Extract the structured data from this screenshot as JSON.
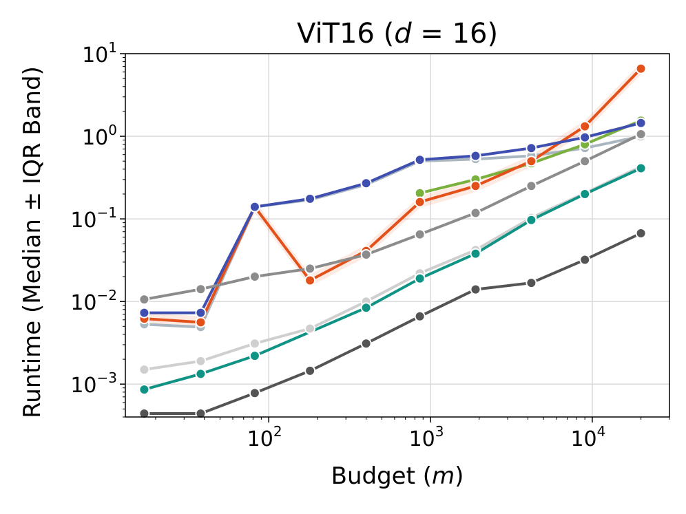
{
  "chart_data": {
    "type": "line",
    "title_plain": "ViT16 (",
    "title_var": "d",
    "title_eq": " = 16)",
    "xlabel_plain": "Budget (",
    "xlabel_var": "m",
    "xlabel_close": ")",
    "ylabel": "Runtime (Median ± IQR Band)",
    "x_scale": "log",
    "y_scale": "log",
    "xlim": [
      13,
      30000
    ],
    "ylim": [
      0.0004,
      10
    ],
    "grid": true,
    "x_ticks": [
      {
        "base": "10",
        "exp": "2",
        "value": 100
      },
      {
        "base": "10",
        "exp": "3",
        "value": 1000
      },
      {
        "base": "10",
        "exp": "4",
        "value": 10000
      }
    ],
    "y_ticks": [
      {
        "base": "10",
        "exp": "−3",
        "value": 0.001
      },
      {
        "base": "10",
        "exp": "−2",
        "value": 0.01
      },
      {
        "base": "10",
        "exp": "−1",
        "value": 0.1
      },
      {
        "base": "10",
        "exp": "0",
        "value": 1
      },
      {
        "base": "10",
        "exp": "1",
        "value": 10
      }
    ],
    "x": [
      17,
      38,
      82,
      180,
      400,
      860,
      1900,
      4200,
      9000,
      20000
    ],
    "series": [
      {
        "color": "#aab7c1",
        "band": false,
        "values": [
          0.0053,
          0.0049,
          0.14,
          0.17,
          0.26,
          0.5,
          0.53,
          0.58,
          0.72,
          1.0
        ]
      },
      {
        "color": "#7ab03e",
        "band": false,
        "values": [
          null,
          null,
          null,
          null,
          null,
          0.205,
          0.3,
          0.47,
          0.8,
          1.55
        ]
      },
      {
        "color": "#e3501a",
        "band": true,
        "values": [
          0.0062,
          0.0056,
          0.14,
          0.018,
          0.041,
          0.16,
          0.25,
          0.5,
          1.32,
          6.6
        ]
      },
      {
        "color": "#3f4fb0",
        "band": false,
        "values": [
          0.0073,
          0.0073,
          0.14,
          0.175,
          0.27,
          0.52,
          0.58,
          0.72,
          0.97,
          1.45
        ]
      },
      {
        "color": "#8c8c8c",
        "band": false,
        "values": [
          0.0106,
          0.0141,
          0.02,
          0.025,
          0.037,
          0.065,
          0.118,
          0.25,
          0.5,
          1.06
        ]
      },
      {
        "color": "#cfcfcf",
        "band": false,
        "values": [
          0.0015,
          0.0019,
          0.0031,
          0.0047,
          0.01,
          0.022,
          0.042,
          0.103,
          0.205,
          0.43
        ]
      },
      {
        "color": "#0e9384",
        "band": false,
        "values": [
          0.00086,
          0.00133,
          0.0022,
          null,
          0.0084,
          0.019,
          0.038,
          0.097,
          0.2,
          0.41
        ]
      },
      {
        "color": "#545454",
        "band": false,
        "values": [
          0.00044,
          0.00044,
          0.00078,
          0.00145,
          0.0031,
          0.0066,
          0.014,
          0.0168,
          0.032,
          0.067
        ]
      }
    ]
  }
}
